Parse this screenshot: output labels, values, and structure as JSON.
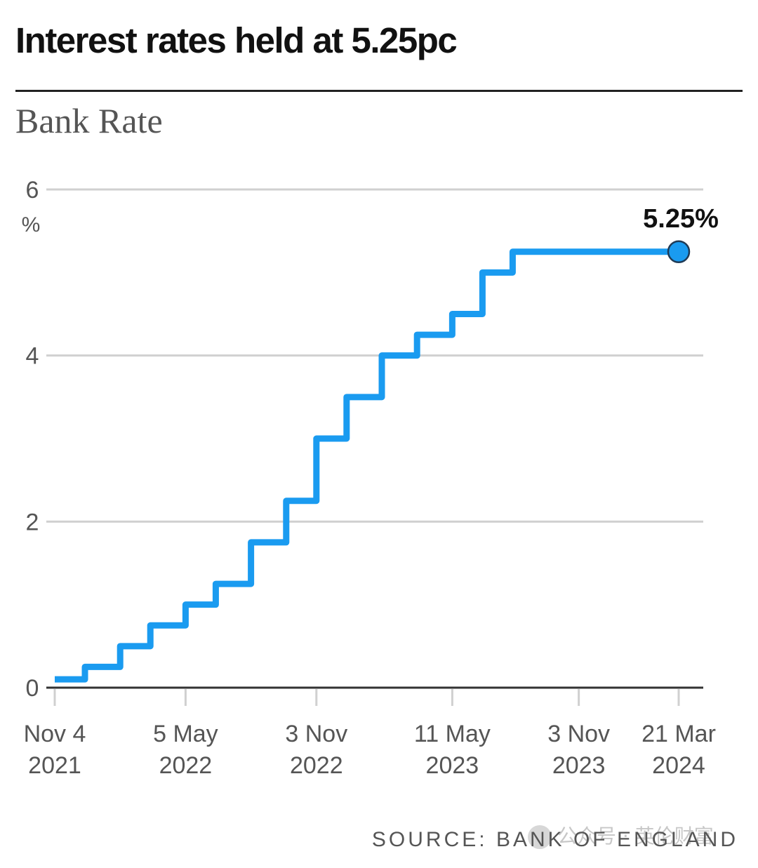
{
  "headline": "Interest rates held at 5.25pc",
  "source": "SOURCE: BANK OF ENGLAND",
  "watermark": "公众号 · 英伦财富",
  "colors": {
    "line": "#1a9bf0",
    "point_fill": "#1a9bf0",
    "point_stroke": "#1f3a55",
    "grid": "#d0d0d0",
    "axis": "#333333",
    "tick_text": "#555555"
  },
  "chart_data": {
    "type": "line",
    "title": "Bank Rate",
    "ylabel": "%",
    "ylim": [
      0,
      6
    ],
    "yticks": [
      0,
      2,
      4,
      6
    ],
    "xlim": [
      "2021-11-04",
      "2024-03-21"
    ],
    "step": "after",
    "grid": true,
    "x_ticks": [
      {
        "date": "2021-11-04",
        "line1": "Nov 4",
        "line2": "2021"
      },
      {
        "date": "2022-05-05",
        "line1": "5 May",
        "line2": "2022"
      },
      {
        "date": "2022-11-03",
        "line1": "3 Nov",
        "line2": "2022"
      },
      {
        "date": "2023-05-11",
        "line1": "11 May",
        "line2": "2023"
      },
      {
        "date": "2023-11-03",
        "line1": "3 Nov",
        "line2": "2023"
      },
      {
        "date": "2024-03-21",
        "line1": "21 Mar",
        "line2": "2024"
      }
    ],
    "series": [
      {
        "x": [
          "2021-11-04",
          "2021-12-16",
          "2022-02-03",
          "2022-03-17",
          "2022-05-05",
          "2022-06-16",
          "2022-08-04",
          "2022-09-22",
          "2022-11-03",
          "2022-12-15",
          "2023-02-02",
          "2023-03-23",
          "2023-05-11",
          "2023-06-22",
          "2023-08-03",
          "2024-03-21"
        ],
        "y": [
          0.1,
          0.25,
          0.5,
          0.75,
          1.0,
          1.25,
          1.75,
          2.25,
          3.0,
          3.5,
          4.0,
          4.25,
          4.5,
          5.0,
          5.25,
          5.25
        ]
      }
    ],
    "annotation": {
      "date": "2024-03-21",
      "value": 5.25,
      "text": "5.25%"
    }
  }
}
